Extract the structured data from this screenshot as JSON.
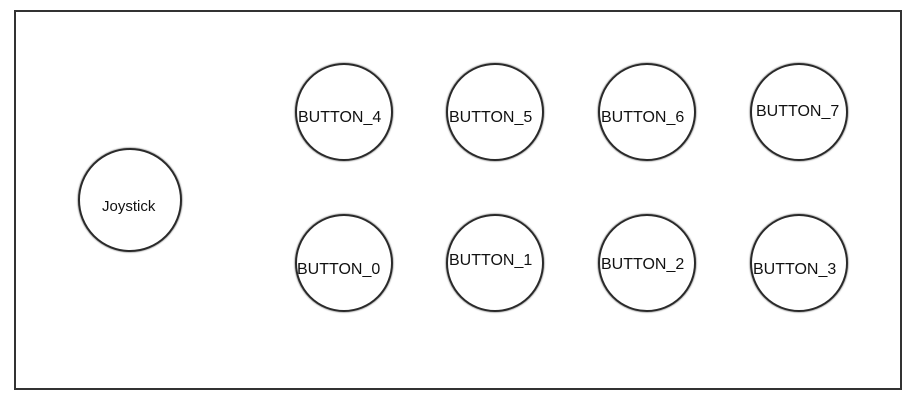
{
  "joystick": {
    "label": "Joystick"
  },
  "buttons": {
    "b0": "BUTTON_0",
    "b1": "BUTTON_1",
    "b2": "BUTTON_2",
    "b3": "BUTTON_3",
    "b4": "BUTTON_4",
    "b5": "BUTTON_5",
    "b6": "BUTTON_6",
    "b7": "BUTTON_7"
  },
  "colors": {
    "outline": "#2a2a2a",
    "background": "#ffffff",
    "text": "#111111"
  }
}
